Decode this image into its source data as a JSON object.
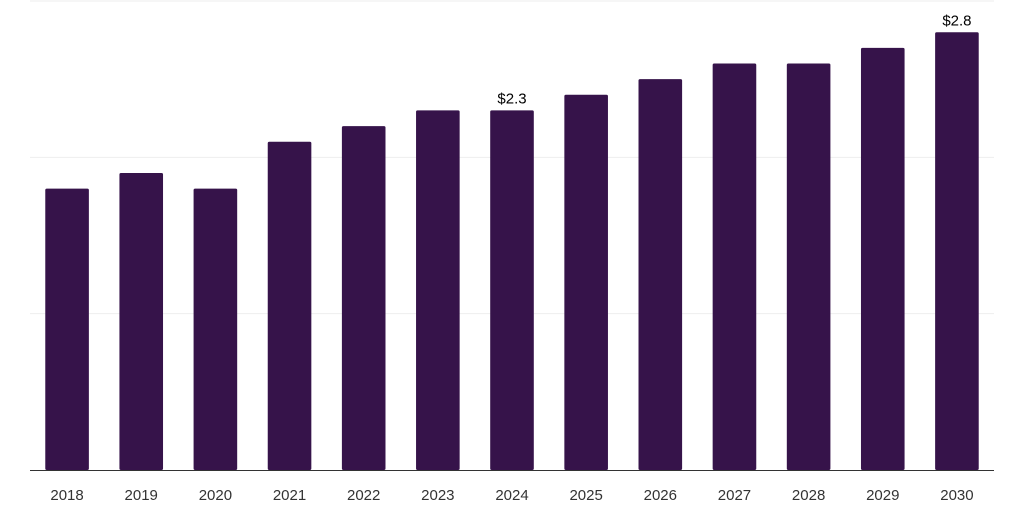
{
  "chart_data": {
    "type": "bar",
    "title": "",
    "xlabel": "",
    "ylabel": "",
    "categories": [
      "2018",
      "2019",
      "2020",
      "2021",
      "2022",
      "2023",
      "2024",
      "2025",
      "2026",
      "2027",
      "2028",
      "2029",
      "2030"
    ],
    "values": [
      1.8,
      1.9,
      1.8,
      2.1,
      2.2,
      2.3,
      2.3,
      2.4,
      2.5,
      2.6,
      2.6,
      2.7,
      2.8
    ],
    "data_labels": [
      {
        "category": "2024",
        "text": "$2.3"
      },
      {
        "category": "2030",
        "text": "$2.8"
      }
    ],
    "ylim": [
      0,
      3
    ],
    "gridlines": [
      1,
      2,
      3
    ],
    "grid": true,
    "legend": "none",
    "colors": {
      "bar": "#36134a",
      "grid": "#eeeeee",
      "axis": "#333333",
      "tick_label": "#333333",
      "data_label": "#000000"
    }
  }
}
